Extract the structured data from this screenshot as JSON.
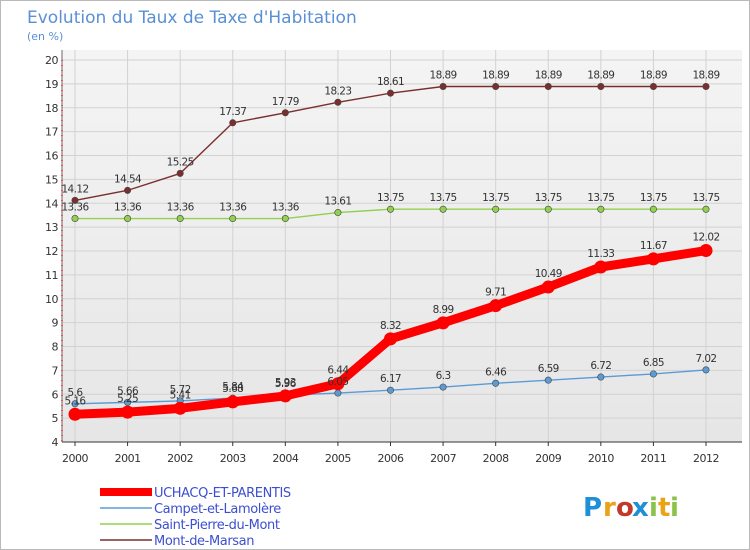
{
  "chart_data": {
    "type": "line",
    "title": "Evolution du Taux de Taxe d'Habitation",
    "ylabel": "(en %)",
    "xlabel": "",
    "x": [
      "2000",
      "2001",
      "2002",
      "2003",
      "2004",
      "2005",
      "2006",
      "2007",
      "2008",
      "2009",
      "2010",
      "2011",
      "2012"
    ],
    "ylim": [
      4,
      20
    ],
    "yticks": [
      "4",
      "5",
      "6",
      "7",
      "8",
      "9",
      "10",
      "11",
      "12",
      "13",
      "14",
      "15",
      "16",
      "17",
      "18",
      "19",
      "20"
    ],
    "grid": true,
    "legend_position": "bottom-left",
    "series": [
      {
        "name": "UCHACQ-ET-PARENTIS",
        "color": "#ff0000",
        "emphasis": true,
        "values": [
          5.16,
          5.25,
          5.41,
          5.68,
          5.93,
          6.44,
          8.32,
          8.99,
          9.71,
          10.49,
          11.33,
          11.67,
          12.02
        ],
        "labels": [
          "5.16",
          "5.25",
          "5.41",
          "5.68",
          "5.93",
          "6.44",
          "8.32",
          "8.99",
          "9.71",
          "10.49",
          "11.33",
          "11.67",
          "12.02"
        ]
      },
      {
        "name": "Campet-et-Lamolère",
        "color": "#5b9bd5",
        "emphasis": false,
        "values": [
          5.6,
          5.66,
          5.72,
          5.84,
          5.96,
          6.05,
          6.17,
          6.3,
          6.46,
          6.59,
          6.72,
          6.85,
          7.02
        ],
        "labels": [
          "5.6",
          "5.66",
          "5.72",
          "5.84",
          "5.96",
          "6.05",
          "6.17",
          "6.3",
          "6.46",
          "6.59",
          "6.72",
          "6.85",
          "7.02"
        ]
      },
      {
        "name": "Saint-Pierre-du-Mont",
        "color": "#92d050",
        "emphasis": false,
        "values": [
          13.36,
          13.36,
          13.36,
          13.36,
          13.36,
          13.61,
          13.75,
          13.75,
          13.75,
          13.75,
          13.75,
          13.75,
          13.75
        ],
        "labels": [
          "13.36",
          "13.36",
          "13.36",
          "13.36",
          "13.36",
          "13.61",
          "13.75",
          "13.75",
          "13.75",
          "13.75",
          "13.75",
          "13.75",
          "13.75"
        ]
      },
      {
        "name": "Mont-de-Marsan",
        "color": "#7a2e2e",
        "emphasis": false,
        "values": [
          14.12,
          14.54,
          15.25,
          17.37,
          17.79,
          18.23,
          18.61,
          18.89,
          18.89,
          18.89,
          18.89,
          18.89,
          18.89
        ],
        "labels": [
          "14.12",
          "14.54",
          "15.25",
          "17.37",
          "17.79",
          "18.23",
          "18.61",
          "18.89",
          "18.89",
          "18.89",
          "18.89",
          "18.89",
          "18.89"
        ]
      }
    ]
  },
  "brand": {
    "letters": [
      "P",
      "r",
      "o",
      "x",
      "i",
      "t",
      "i"
    ],
    "colors": [
      "#1f8fd6",
      "#e8a317",
      "#c0392b",
      "#1f8fd6",
      "#8bc34a",
      "#e8a317",
      "#8bc34a"
    ]
  }
}
